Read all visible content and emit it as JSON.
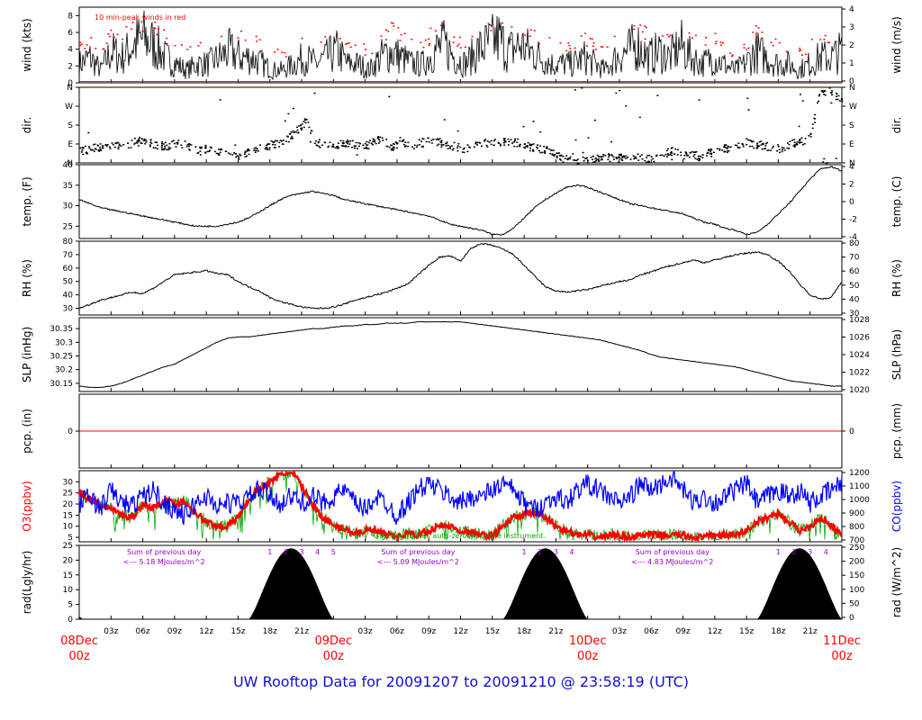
{
  "title": "UW Rooftop Data for 20091207  to  20091210 @ 23:58:19  (UTC)",
  "colors": {
    "title": "#1010d0",
    "red": "#ff0000",
    "blue": "#0000ff",
    "green": "#00aa00",
    "purple": "#9900cc",
    "black": "#000000"
  },
  "time_axis": {
    "range_hours": [
      0,
      72
    ],
    "hour_ticks": [
      "03z",
      "06z",
      "09z",
      "12z",
      "15z",
      "18z",
      "21z"
    ],
    "day_labels": [
      {
        "hour": 0,
        "day": "08Dec",
        "z": "00z"
      },
      {
        "hour": 24,
        "day": "09Dec",
        "z": "00z"
      },
      {
        "hour": 48,
        "day": "10Dec",
        "z": "00z"
      },
      {
        "hour": 72,
        "day": "11Dec",
        "z": "00z"
      }
    ]
  },
  "chart_data": [
    {
      "id": "wind",
      "type": "line",
      "ylabel": "wind (kts)",
      "ylabel_right": "wind (m/s)",
      "ylim": [
        0,
        9
      ],
      "yticks": [
        0,
        2,
        4,
        6,
        8
      ],
      "yticks_right": [
        0,
        1,
        2,
        3,
        4
      ],
      "annotation": "10 min-peak winds in red",
      "series": [
        {
          "values": [
            3,
            4,
            2,
            5,
            4,
            6,
            7,
            6,
            4,
            3,
            2,
            3,
            3,
            4,
            5,
            4,
            4,
            3,
            2,
            2,
            3,
            4,
            3,
            4,
            5,
            3,
            3,
            2,
            4,
            5,
            4,
            3,
            3,
            5,
            6,
            4,
            3,
            5,
            6,
            7,
            5,
            6,
            5,
            4,
            3,
            3,
            3,
            4,
            3,
            2,
            4,
            5,
            6,
            4,
            5,
            4,
            6,
            4,
            3,
            4,
            3,
            2,
            3,
            5,
            4,
            3,
            3,
            2,
            3,
            4,
            4,
            5
          ]
        },
        {
          "values": [
            5,
            6,
            4,
            7,
            6,
            8,
            8,
            8,
            6,
            5,
            4,
            5,
            5,
            6,
            7,
            6,
            6,
            5,
            4,
            4,
            5,
            6,
            5,
            6,
            7,
            5,
            5,
            4,
            6,
            7,
            6,
            5,
            5,
            7,
            8,
            6,
            5,
            7,
            8,
            8,
            7,
            7,
            7,
            6,
            5,
            5,
            5,
            6,
            5,
            4,
            6,
            7,
            8,
            6,
            7,
            6,
            8,
            6,
            5,
            6,
            5,
            4,
            5,
            7,
            6,
            5,
            5,
            4,
            5,
            6,
            6,
            6
          ]
        }
      ]
    },
    {
      "id": "dir",
      "type": "scatter",
      "ylabel": "dir.",
      "ylabel_right": "dir.",
      "ylim": [
        0,
        360
      ],
      "yticks": [
        "N",
        "E",
        "S",
        "W",
        "N"
      ],
      "series": [
        {
          "values": [
            60,
            70,
            80,
            90,
            80,
            100,
            110,
            90,
            80,
            100,
            90,
            60,
            70,
            50,
            40,
            30,
            60,
            80,
            90,
            100,
            150,
            200,
            100,
            80,
            90,
            100,
            80,
            90,
            120,
            80,
            100,
            90,
            100,
            110,
            90,
            80,
            70,
            90,
            100,
            100,
            110,
            90,
            80,
            70,
            60,
            20,
            10,
            15,
            20,
            30,
            20,
            40,
            30,
            20,
            30,
            60,
            50,
            40,
            30,
            60,
            70,
            80,
            100,
            90,
            80,
            70,
            90,
            100,
            120,
            350,
            340,
            300
          ]
        }
      ]
    },
    {
      "id": "temp",
      "type": "line",
      "ylabel": "temp. (F)",
      "ylabel_right": "temp. (C)",
      "ylim": [
        22,
        40
      ],
      "yticks": [
        25,
        30,
        35,
        40
      ],
      "yticks_right": [
        -4,
        -2,
        0,
        2,
        4
      ],
      "series": [
        {
          "values": [
            31.5,
            30.5,
            29.5,
            29,
            28.5,
            28,
            27.5,
            27,
            26.5,
            26,
            25.5,
            25,
            25,
            25,
            25.5,
            26,
            27,
            28.5,
            30,
            31.5,
            32.5,
            33,
            33.5,
            33,
            32.5,
            31.5,
            31,
            30.5,
            30,
            29.5,
            29,
            28.5,
            28,
            27.5,
            26.5,
            25.5,
            25,
            24.5,
            24,
            23,
            23,
            24.5,
            27,
            29.5,
            31.5,
            33,
            34.5,
            35,
            34.5,
            33.5,
            32.5,
            31.5,
            30.5,
            30,
            29.5,
            29,
            28.5,
            28,
            27,
            26,
            25.5,
            24.5,
            24,
            23,
            23.5,
            25.5,
            28,
            30.5,
            33.5,
            36.5,
            39,
            39.5,
            38.5
          ]
        }
      ]
    },
    {
      "id": "rh",
      "type": "line",
      "ylabel": "RH (%)",
      "ylabel_right": "RH (%)",
      "ylim": [
        25,
        80
      ],
      "yticks": [
        30,
        40,
        50,
        60,
        70,
        80
      ],
      "yticks_right": [
        30,
        40,
        50,
        60,
        70,
        80
      ],
      "series": [
        {
          "values": [
            30,
            33,
            36,
            38,
            40,
            42,
            41,
            45,
            50,
            55,
            56,
            57,
            58,
            56,
            55,
            50,
            46,
            43,
            38,
            35,
            33,
            31,
            30,
            30,
            31,
            33,
            36,
            38,
            40,
            42,
            45,
            48,
            55,
            62,
            68,
            69,
            65,
            75,
            78,
            77,
            74,
            70,
            62,
            54,
            46,
            43,
            42,
            43,
            44,
            46,
            48,
            50,
            51,
            55,
            57,
            60,
            62,
            64,
            66,
            64,
            66,
            68,
            70,
            71,
            72,
            70,
            65,
            58,
            48,
            40,
            37,
            38,
            50
          ]
        }
      ]
    },
    {
      "id": "slp",
      "type": "line",
      "ylabel": "SLP (inHg)",
      "ylabel_right": "SLP (hPa)",
      "ylim": [
        30.12,
        30.39
      ],
      "yticks": [
        30.15,
        30.2,
        30.25,
        30.3,
        30.35
      ],
      "yticks_right": [
        1020,
        1022,
        1024,
        1026,
        1028
      ],
      "series": [
        {
          "values": [
            30.14,
            30.135,
            30.135,
            30.14,
            30.15,
            30.165,
            30.18,
            30.195,
            30.21,
            30.22,
            30.24,
            30.26,
            30.28,
            30.3,
            30.315,
            30.32,
            30.32,
            30.325,
            30.33,
            30.335,
            30.34,
            30.345,
            30.35,
            30.35,
            30.355,
            30.36,
            30.36,
            30.365,
            30.365,
            30.37,
            30.37,
            30.37,
            30.375,
            30.375,
            30.375,
            30.375,
            30.375,
            30.37,
            30.365,
            30.36,
            30.355,
            30.35,
            30.345,
            30.34,
            30.335,
            30.33,
            30.325,
            30.32,
            30.315,
            30.31,
            30.3,
            30.29,
            30.28,
            30.27,
            30.255,
            30.245,
            30.24,
            30.235,
            30.23,
            30.225,
            30.22,
            30.215,
            30.21,
            30.2,
            30.19,
            30.18,
            30.17,
            30.16,
            30.155,
            30.15,
            30.145,
            30.14,
            30.14
          ]
        }
      ]
    },
    {
      "id": "pcp",
      "type": "line",
      "ylabel": "pcp. (in)",
      "ylabel_right": "pcp. (mm)",
      "ylim": [
        -1,
        1
      ],
      "yticks": [
        0
      ],
      "yticks_right": [
        0
      ],
      "series": [
        {
          "values": [
            0,
            0,
            0,
            0,
            0,
            0,
            0,
            0,
            0,
            0,
            0,
            0,
            0,
            0,
            0,
            0,
            0,
            0,
            0,
            0,
            0,
            0,
            0,
            0,
            0,
            0,
            0,
            0,
            0,
            0,
            0,
            0,
            0,
            0,
            0,
            0,
            0,
            0,
            0,
            0,
            0,
            0,
            0,
            0,
            0,
            0,
            0,
            0,
            0,
            0,
            0,
            0,
            0,
            0,
            0,
            0,
            0,
            0,
            0,
            0,
            0,
            0,
            0,
            0,
            0,
            0,
            0,
            0,
            0,
            0,
            0,
            0,
            0
          ]
        }
      ]
    },
    {
      "id": "o3co",
      "type": "line",
      "ylabel": "O3(ppbv)",
      "ylabel_right": "CO(ppbv)",
      "ylim": [
        3,
        35
      ],
      "yticks": [
        5,
        10,
        15,
        20,
        25,
        30
      ],
      "yticks_right": [
        700,
        800,
        900,
        1000,
        1100,
        1200
      ],
      "annotation": "Green indicates auto-zeroing of the instrument.",
      "series": [
        {
          "name": "O3",
          "values": [
            25,
            22,
            20,
            18,
            15,
            14,
            20,
            18,
            22,
            20,
            21,
            16,
            12,
            10,
            10,
            14,
            22,
            27,
            30,
            33,
            35,
            28,
            20,
            14,
            10,
            9,
            7,
            8,
            8,
            6,
            5,
            7,
            6,
            8,
            10,
            10,
            8,
            7,
            6,
            6,
            10,
            14,
            15,
            16,
            14,
            10,
            8,
            6,
            6,
            5,
            6,
            6,
            5,
            6,
            6,
            6,
            6,
            6,
            5,
            5,
            6,
            6,
            6,
            8,
            12,
            14,
            16,
            12,
            8,
            10,
            14,
            10,
            6
          ]
        },
        {
          "name": "CO",
          "values": [
            1000,
            1050,
            950,
            1100,
            1000,
            980,
            1050,
            1100,
            1000,
            950,
            900,
            1000,
            1050,
            980,
            1000,
            1000,
            1050,
            1100,
            1050,
            1000,
            1050,
            1000,
            1050,
            1000,
            1050,
            1100,
            1000,
            950,
            1050,
            1000,
            900,
            1000,
            1100,
            1150,
            1100,
            1050,
            1000,
            1050,
            1050,
            1100,
            1150,
            1100,
            1000,
            950,
            1000,
            1050,
            1000,
            1100,
            1150,
            1100,
            1050,
            1000,
            1050,
            1150,
            1100,
            1150,
            1200,
            1100,
            1000,
            1050,
            1000,
            1050,
            1100,
            1150,
            1000,
            1050,
            1100,
            1050,
            1100,
            1000,
            1050,
            1100,
            1150
          ]
        }
      ]
    },
    {
      "id": "rad",
      "type": "area",
      "ylabel": "rad(Lgly/hr)",
      "ylabel_right": "rad (W/m^2)",
      "ylim": [
        0,
        25
      ],
      "yticks": [
        0,
        5,
        10,
        15,
        20,
        25
      ],
      "yticks_right": [
        0,
        50,
        100,
        150,
        200,
        250
      ],
      "days": [
        {
          "start_hour": 16,
          "end_hour": 24,
          "peak": 24,
          "peak_hour": 20,
          "sum_line1": "Sum of previous day",
          "sum_line2": "<--- 5.18 MJoules/m^2",
          "markers": [
            "1",
            "2",
            "3",
            "4",
            "5"
          ]
        },
        {
          "start_hour": 40,
          "end_hour": 48,
          "peak": 24,
          "peak_hour": 44,
          "sum_line1": "Sum of previous day",
          "sum_line2": "<--- 5.09 MJoules/m^2",
          "markers": [
            "1",
            "2",
            "3",
            "4"
          ]
        },
        {
          "start_hour": 64,
          "end_hour": 72,
          "peak": 24,
          "peak_hour": 68,
          "sum_line1": "Sum of previous day",
          "sum_line2": "<--- 4.83 MJoules/m^2",
          "markers": [
            "1",
            "2",
            "3",
            "4"
          ]
        }
      ]
    }
  ]
}
